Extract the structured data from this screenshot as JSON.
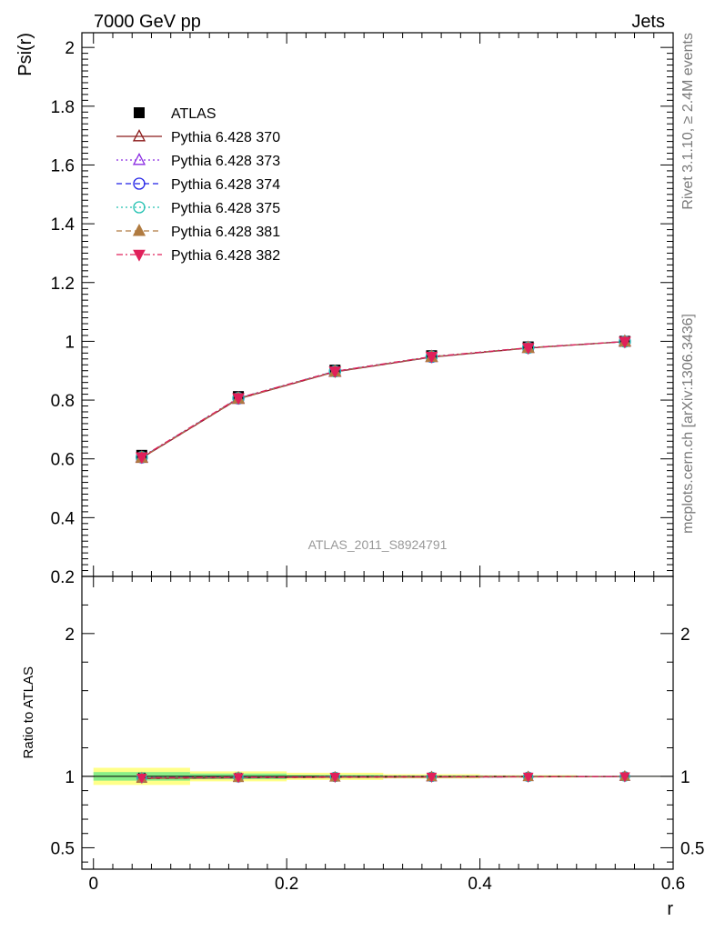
{
  "header": {
    "left": "7000 GeV pp",
    "right": "Jets"
  },
  "side_labels": {
    "rivet": "Rivet 3.1.10, ≥ 2.4M events",
    "mcplots": "mcplots.cern.ch [arXiv:1306.3436]"
  },
  "watermark": "ATLAS_2011_S8924791",
  "chart_data": [
    {
      "type": "line",
      "panel": "main",
      "xlabel": "r",
      "ylabel": "Psi(r)",
      "xlim": [
        -0.012,
        0.6
      ],
      "ylim": [
        0.2,
        2.05
      ],
      "x_ticks": [
        "0",
        "0.2",
        "0.4",
        "0.6"
      ],
      "y_ticks": [
        "0.2",
        "0.4",
        "0.6",
        "0.8",
        "1",
        "1.2",
        "1.4",
        "1.6",
        "1.8",
        "2"
      ],
      "legend_position": "top-left",
      "x": [
        0.05,
        0.15,
        0.25,
        0.35,
        0.45,
        0.55
      ],
      "data": {
        "name": "ATLAS",
        "values": [
          0.612,
          0.812,
          0.902,
          0.951,
          0.981,
          1.0
        ],
        "color": "#000000"
      },
      "series": [
        {
          "name": "Pythia 6.428 370",
          "values": [
            0.603,
            0.804,
            0.896,
            0.946,
            0.977,
            0.999
          ],
          "color": "#8b1a1a",
          "marker": "triangle-open",
          "dash": "solid"
        },
        {
          "name": "Pythia 6.428 373",
          "values": [
            0.605,
            0.806,
            0.897,
            0.947,
            0.978,
            0.999
          ],
          "color": "#8a2be2",
          "marker": "triangle-open",
          "dash": "dotted"
        },
        {
          "name": "Pythia 6.428 374",
          "values": [
            0.605,
            0.806,
            0.898,
            0.947,
            0.978,
            0.999
          ],
          "color": "#1f1fe6",
          "marker": "circle-open",
          "dash": "dashed"
        },
        {
          "name": "Pythia 6.428 375",
          "values": [
            0.606,
            0.807,
            0.898,
            0.948,
            0.978,
            0.999
          ],
          "color": "#20c0b0",
          "marker": "circle-open",
          "dash": "dotted"
        },
        {
          "name": "Pythia 6.428 381",
          "values": [
            0.604,
            0.805,
            0.897,
            0.947,
            0.978,
            0.999
          ],
          "color": "#b07b40",
          "marker": "triangle-filled",
          "dash": "dashed"
        },
        {
          "name": "Pythia 6.428 382",
          "values": [
            0.606,
            0.807,
            0.898,
            0.948,
            0.978,
            0.999
          ],
          "color": "#e0205a",
          "marker": "triangle-down-filled",
          "dash": "dashdot"
        }
      ]
    },
    {
      "type": "line",
      "panel": "ratio",
      "xlabel": "r",
      "ylabel": "Ratio to ATLAS",
      "xlim": [
        -0.012,
        0.6
      ],
      "ylim": [
        0.35,
        2.4
      ],
      "y_ticks": [
        "0.5",
        "1",
        "2"
      ],
      "x": [
        0.05,
        0.15,
        0.25,
        0.35,
        0.45,
        0.55
      ],
      "bands": [
        {
          "x_range": [
            0.0,
            0.1
          ],
          "yellow": [
            0.94,
            1.06
          ],
          "green": [
            0.97,
            1.03
          ]
        },
        {
          "x_range": [
            0.1,
            0.2
          ],
          "yellow": [
            0.965,
            1.035
          ],
          "green": [
            0.98,
            1.02
          ]
        },
        {
          "x_range": [
            0.2,
            0.3
          ],
          "yellow": [
            0.975,
            1.025
          ],
          "green": [
            0.99,
            1.01
          ]
        },
        {
          "x_range": [
            0.3,
            0.4
          ],
          "yellow": [
            0.985,
            1.015
          ],
          "green": [
            0.995,
            1.005
          ]
        },
        {
          "x_range": [
            0.4,
            0.5
          ],
          "yellow": [
            0.992,
            1.008
          ],
          "green": [
            0.997,
            1.003
          ]
        },
        {
          "x_range": [
            0.5,
            0.6
          ],
          "yellow": [
            0.998,
            1.002
          ],
          "green": [
            0.999,
            1.001
          ]
        }
      ],
      "series": [
        {
          "name": "Pythia 6.428 370",
          "values": [
            0.985,
            0.99,
            0.993,
            0.995,
            0.996,
            0.999
          ]
        },
        {
          "name": "Pythia 6.428 373",
          "values": [
            0.989,
            0.993,
            0.994,
            0.996,
            0.997,
            0.999
          ]
        },
        {
          "name": "Pythia 6.428 374",
          "values": [
            0.989,
            0.993,
            0.996,
            0.996,
            0.997,
            0.999
          ]
        },
        {
          "name": "Pythia 6.428 375",
          "values": [
            0.99,
            0.994,
            0.996,
            0.997,
            0.997,
            0.999
          ]
        },
        {
          "name": "Pythia 6.428 381",
          "values": [
            0.987,
            0.991,
            0.994,
            0.996,
            0.997,
            0.999
          ]
        },
        {
          "name": "Pythia 6.428 382",
          "values": [
            0.99,
            0.994,
            0.996,
            0.997,
            0.997,
            0.999
          ]
        }
      ]
    }
  ]
}
